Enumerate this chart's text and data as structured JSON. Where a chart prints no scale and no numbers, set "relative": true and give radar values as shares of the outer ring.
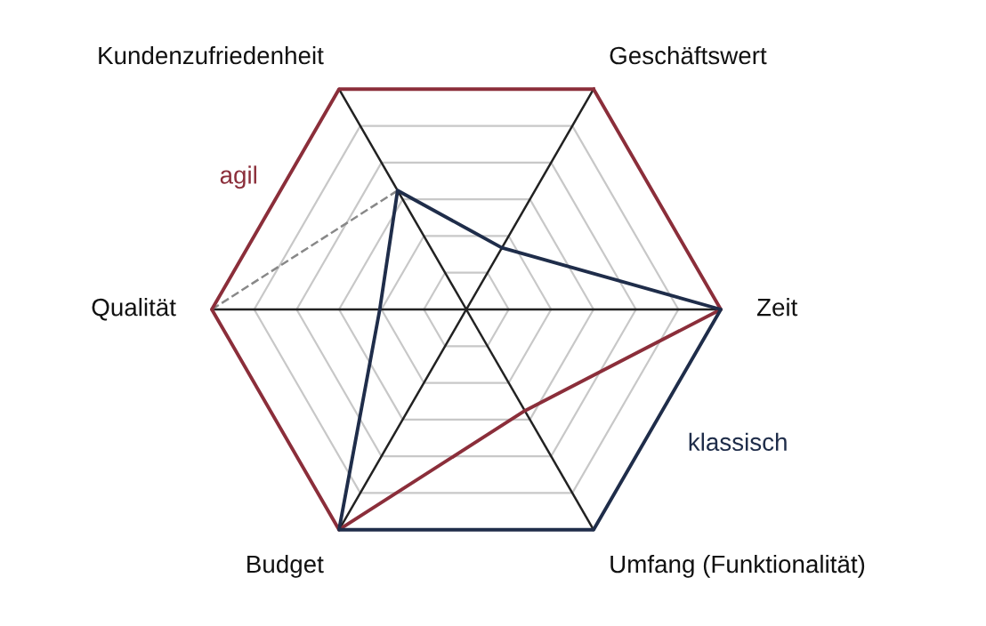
{
  "chart_data": {
    "type": "radar",
    "relative": true,
    "grid": true,
    "categories": [
      "Geschäftswert",
      "Zeit",
      "Umfang (Funktionalität)",
      "Budget",
      "Qualität",
      "Kundenzufriedenheit"
    ],
    "series": [
      {
        "name": "agil",
        "color": "#8b2e3a",
        "values": [
          1,
          1,
          0.46,
          1,
          1,
          1
        ]
      },
      {
        "name": "klassisch",
        "color": "#1f2d4a",
        "values": [
          0.28,
          1,
          1,
          1,
          0.34,
          0.54
        ]
      }
    ]
  }
}
